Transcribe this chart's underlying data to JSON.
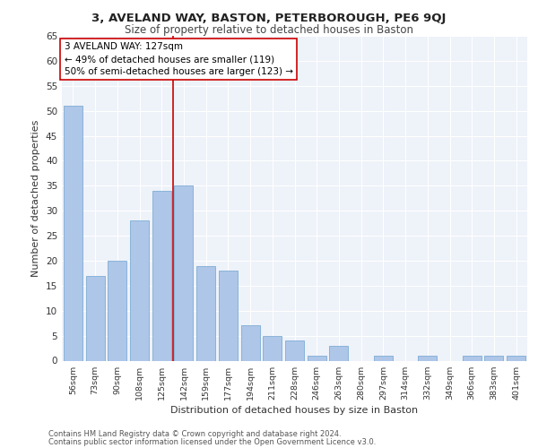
{
  "title1": "3, AVELAND WAY, BASTON, PETERBOROUGH, PE6 9QJ",
  "title2": "Size of property relative to detached houses in Baston",
  "xlabel": "Distribution of detached houses by size in Baston",
  "ylabel": "Number of detached properties",
  "categories": [
    "56sqm",
    "73sqm",
    "90sqm",
    "108sqm",
    "125sqm",
    "142sqm",
    "159sqm",
    "177sqm",
    "194sqm",
    "211sqm",
    "228sqm",
    "246sqm",
    "263sqm",
    "280sqm",
    "297sqm",
    "314sqm",
    "332sqm",
    "349sqm",
    "366sqm",
    "383sqm",
    "401sqm"
  ],
  "values": [
    51,
    17,
    20,
    28,
    34,
    35,
    19,
    18,
    7,
    5,
    4,
    1,
    3,
    0,
    1,
    0,
    1,
    0,
    1,
    1,
    1
  ],
  "bar_color": "#aec6e8",
  "bar_edgecolor": "#7eadd4",
  "vline_x": 4.5,
  "vline_color": "#cc0000",
  "annotation_lines": [
    "3 AVELAND WAY: 127sqm",
    "← 49% of detached houses are smaller (119)",
    "50% of semi-detached houses are larger (123) →"
  ],
  "annotation_box_edgecolor": "#cc0000",
  "ylim": [
    0,
    65
  ],
  "yticks": [
    0,
    5,
    10,
    15,
    20,
    25,
    30,
    35,
    40,
    45,
    50,
    55,
    60,
    65
  ],
  "background_color": "#eef2f9",
  "grid_color": "#ffffff",
  "fig_background": "#ffffff",
  "footer1": "Contains HM Land Registry data © Crown copyright and database right 2024.",
  "footer2": "Contains public sector information licensed under the Open Government Licence v3.0."
}
